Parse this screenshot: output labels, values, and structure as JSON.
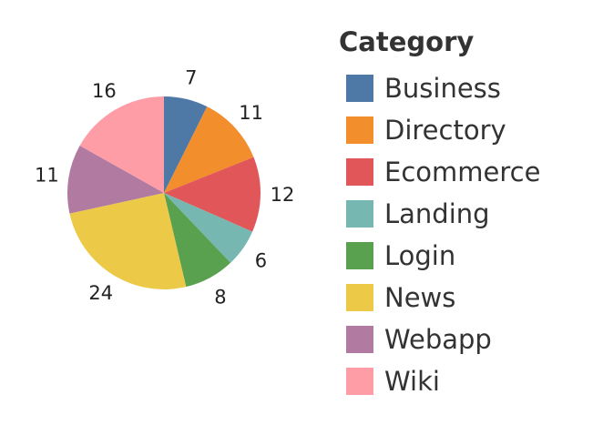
{
  "chart_data": {
    "type": "pie",
    "title": "",
    "legend_title": "Category",
    "legend_position": "right",
    "slices": [
      {
        "label": "Business",
        "value": 7,
        "color": "#4e79a7"
      },
      {
        "label": "Directory",
        "value": 11,
        "color": "#f28e2b"
      },
      {
        "label": "Ecommerce",
        "value": 12,
        "color": "#e15759"
      },
      {
        "label": "Landing",
        "value": 6,
        "color": "#76b7b2"
      },
      {
        "label": "Login",
        "value": 8,
        "color": "#59a14f"
      },
      {
        "label": "News",
        "value": 24,
        "color": "#edc948"
      },
      {
        "label": "Webapp",
        "value": 11,
        "color": "#b07aa1"
      },
      {
        "label": "Wiki",
        "value": 16,
        "color": "#ff9da7"
      }
    ]
  }
}
